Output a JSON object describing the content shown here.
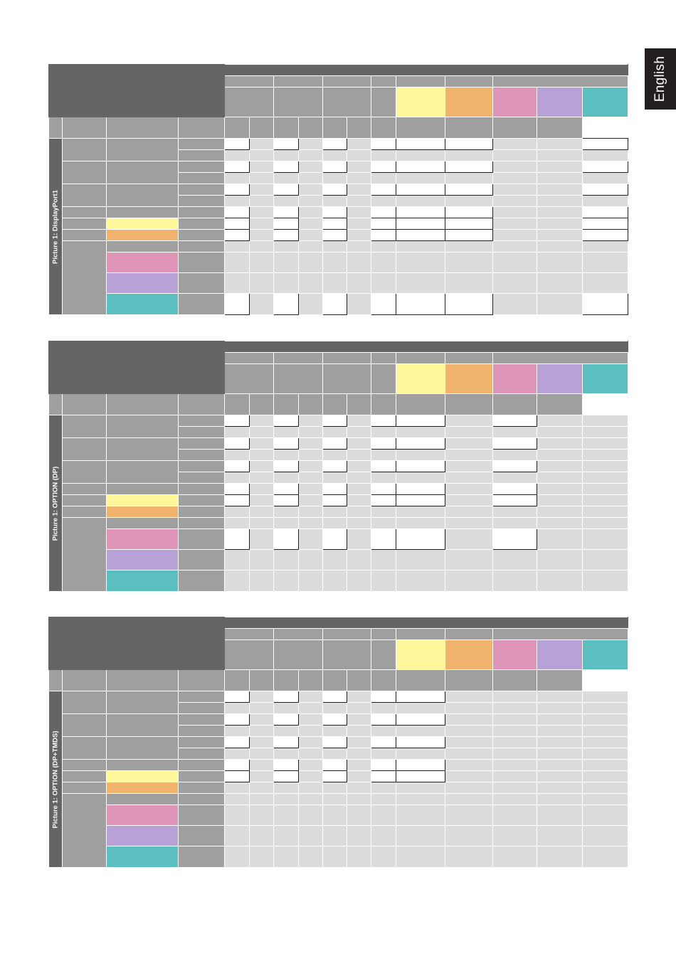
{
  "tab": {
    "label": "English"
  },
  "colors": {
    "header_dark": "#666465",
    "header_gray": "#a09fa0",
    "cell_gray": "#dcdcdc",
    "cell_white": "#ffffff",
    "yellow": "#fff799",
    "orange": "#f0b36e",
    "pink": "#df95b8",
    "purple": "#b7a1d6",
    "teal": "#5bbfbf"
  },
  "tables": [
    {
      "title": "Picture 1: DisplayPort1",
      "rows": [
        "wgwgwgwwwggw",
        "ggggggggggggg",
        "wgwgwgwwwggw",
        "ggggggggggggg",
        "wgwgwgwwwggw",
        "ggggggggggggg",
        "wgwgwgwwwggw",
        "wgwgwgwwwggw",
        "wgwgwgwwwggw",
        "ggggggggggggg",
        "ggggggggggggg",
        "wgwgwgwwwggw"
      ]
    },
    {
      "title": "Picture 1: OPTION (DP)",
      "rows": [
        "wgwgwgwwgwgg",
        "ggggggggggggg",
        "wgwgwgwwgwgg",
        "ggggggggggggg",
        "wgwgwgwwgwgg",
        "ggggggggggggg",
        "wgwgwgwwgwgg",
        "wgwgwgwwgwgg",
        "ggggggggggggg",
        "wgwgwgwwgwgg",
        "ggggggggggggg",
        "ggggggggggggg"
      ]
    },
    {
      "title": "Picture 1: OPTION (DP+TMDS)",
      "rows": [
        "wgwgwgwwgggg",
        "ggggggggggggg",
        "wgwgwgwwgggg",
        "ggggggggggggg",
        "wgwgwgwwgggg",
        "ggggggggggggg",
        "wgwgwgwwgggg",
        "wgwgwgwwgggg",
        "ggggggggggggg",
        "ggggggggggggg",
        "ggggggggggggg",
        "ggggggggggggg"
      ]
    }
  ]
}
